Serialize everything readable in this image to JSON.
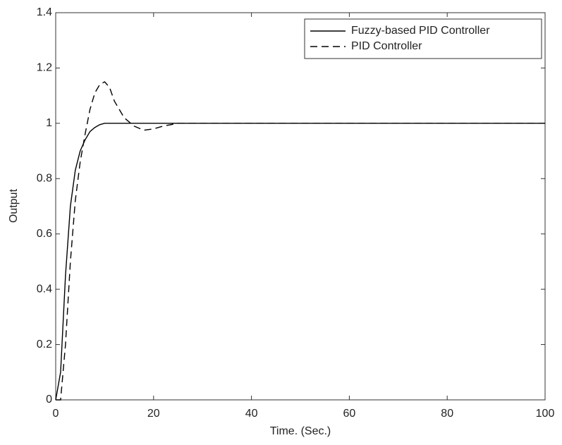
{
  "chart_data": {
    "type": "line",
    "x_label": "Time. (Sec.)",
    "y_label": "Output",
    "x": [
      0,
      1,
      2,
      3,
      4,
      5,
      6,
      7,
      8,
      9,
      10,
      11,
      12,
      14,
      16,
      18,
      20,
      22,
      25,
      30,
      40,
      60,
      80,
      100
    ],
    "series": [
      {
        "name": "Fuzzy-based PID Controller",
        "color": "#000000",
        "line_style": "solid",
        "values": [
          0,
          0.1,
          0.45,
          0.7,
          0.83,
          0.9,
          0.94,
          0.97,
          0.985,
          0.995,
          1,
          1,
          1,
          1,
          1,
          1,
          1,
          1,
          1,
          1,
          1,
          1,
          1,
          1
        ]
      },
      {
        "name": "PID Controller",
        "color": "#000000",
        "line_style": "dashed",
        "values": [
          0,
          0,
          0.2,
          0.5,
          0.72,
          0.86,
          0.96,
          1.05,
          1.11,
          1.14,
          1.15,
          1.13,
          1.08,
          1.02,
          0.99,
          0.975,
          0.98,
          0.99,
          1,
          1,
          1,
          1,
          1,
          1
        ]
      }
    ],
    "xlim": [
      0,
      100
    ],
    "xticks": [
      0,
      20,
      40,
      60,
      80,
      100
    ],
    "ylim": [
      0,
      1.4
    ],
    "yticks": [
      0,
      0.2,
      0.4,
      0.6,
      0.8,
      1,
      1.2,
      1.4
    ],
    "grid": false,
    "legend": "upper right"
  }
}
